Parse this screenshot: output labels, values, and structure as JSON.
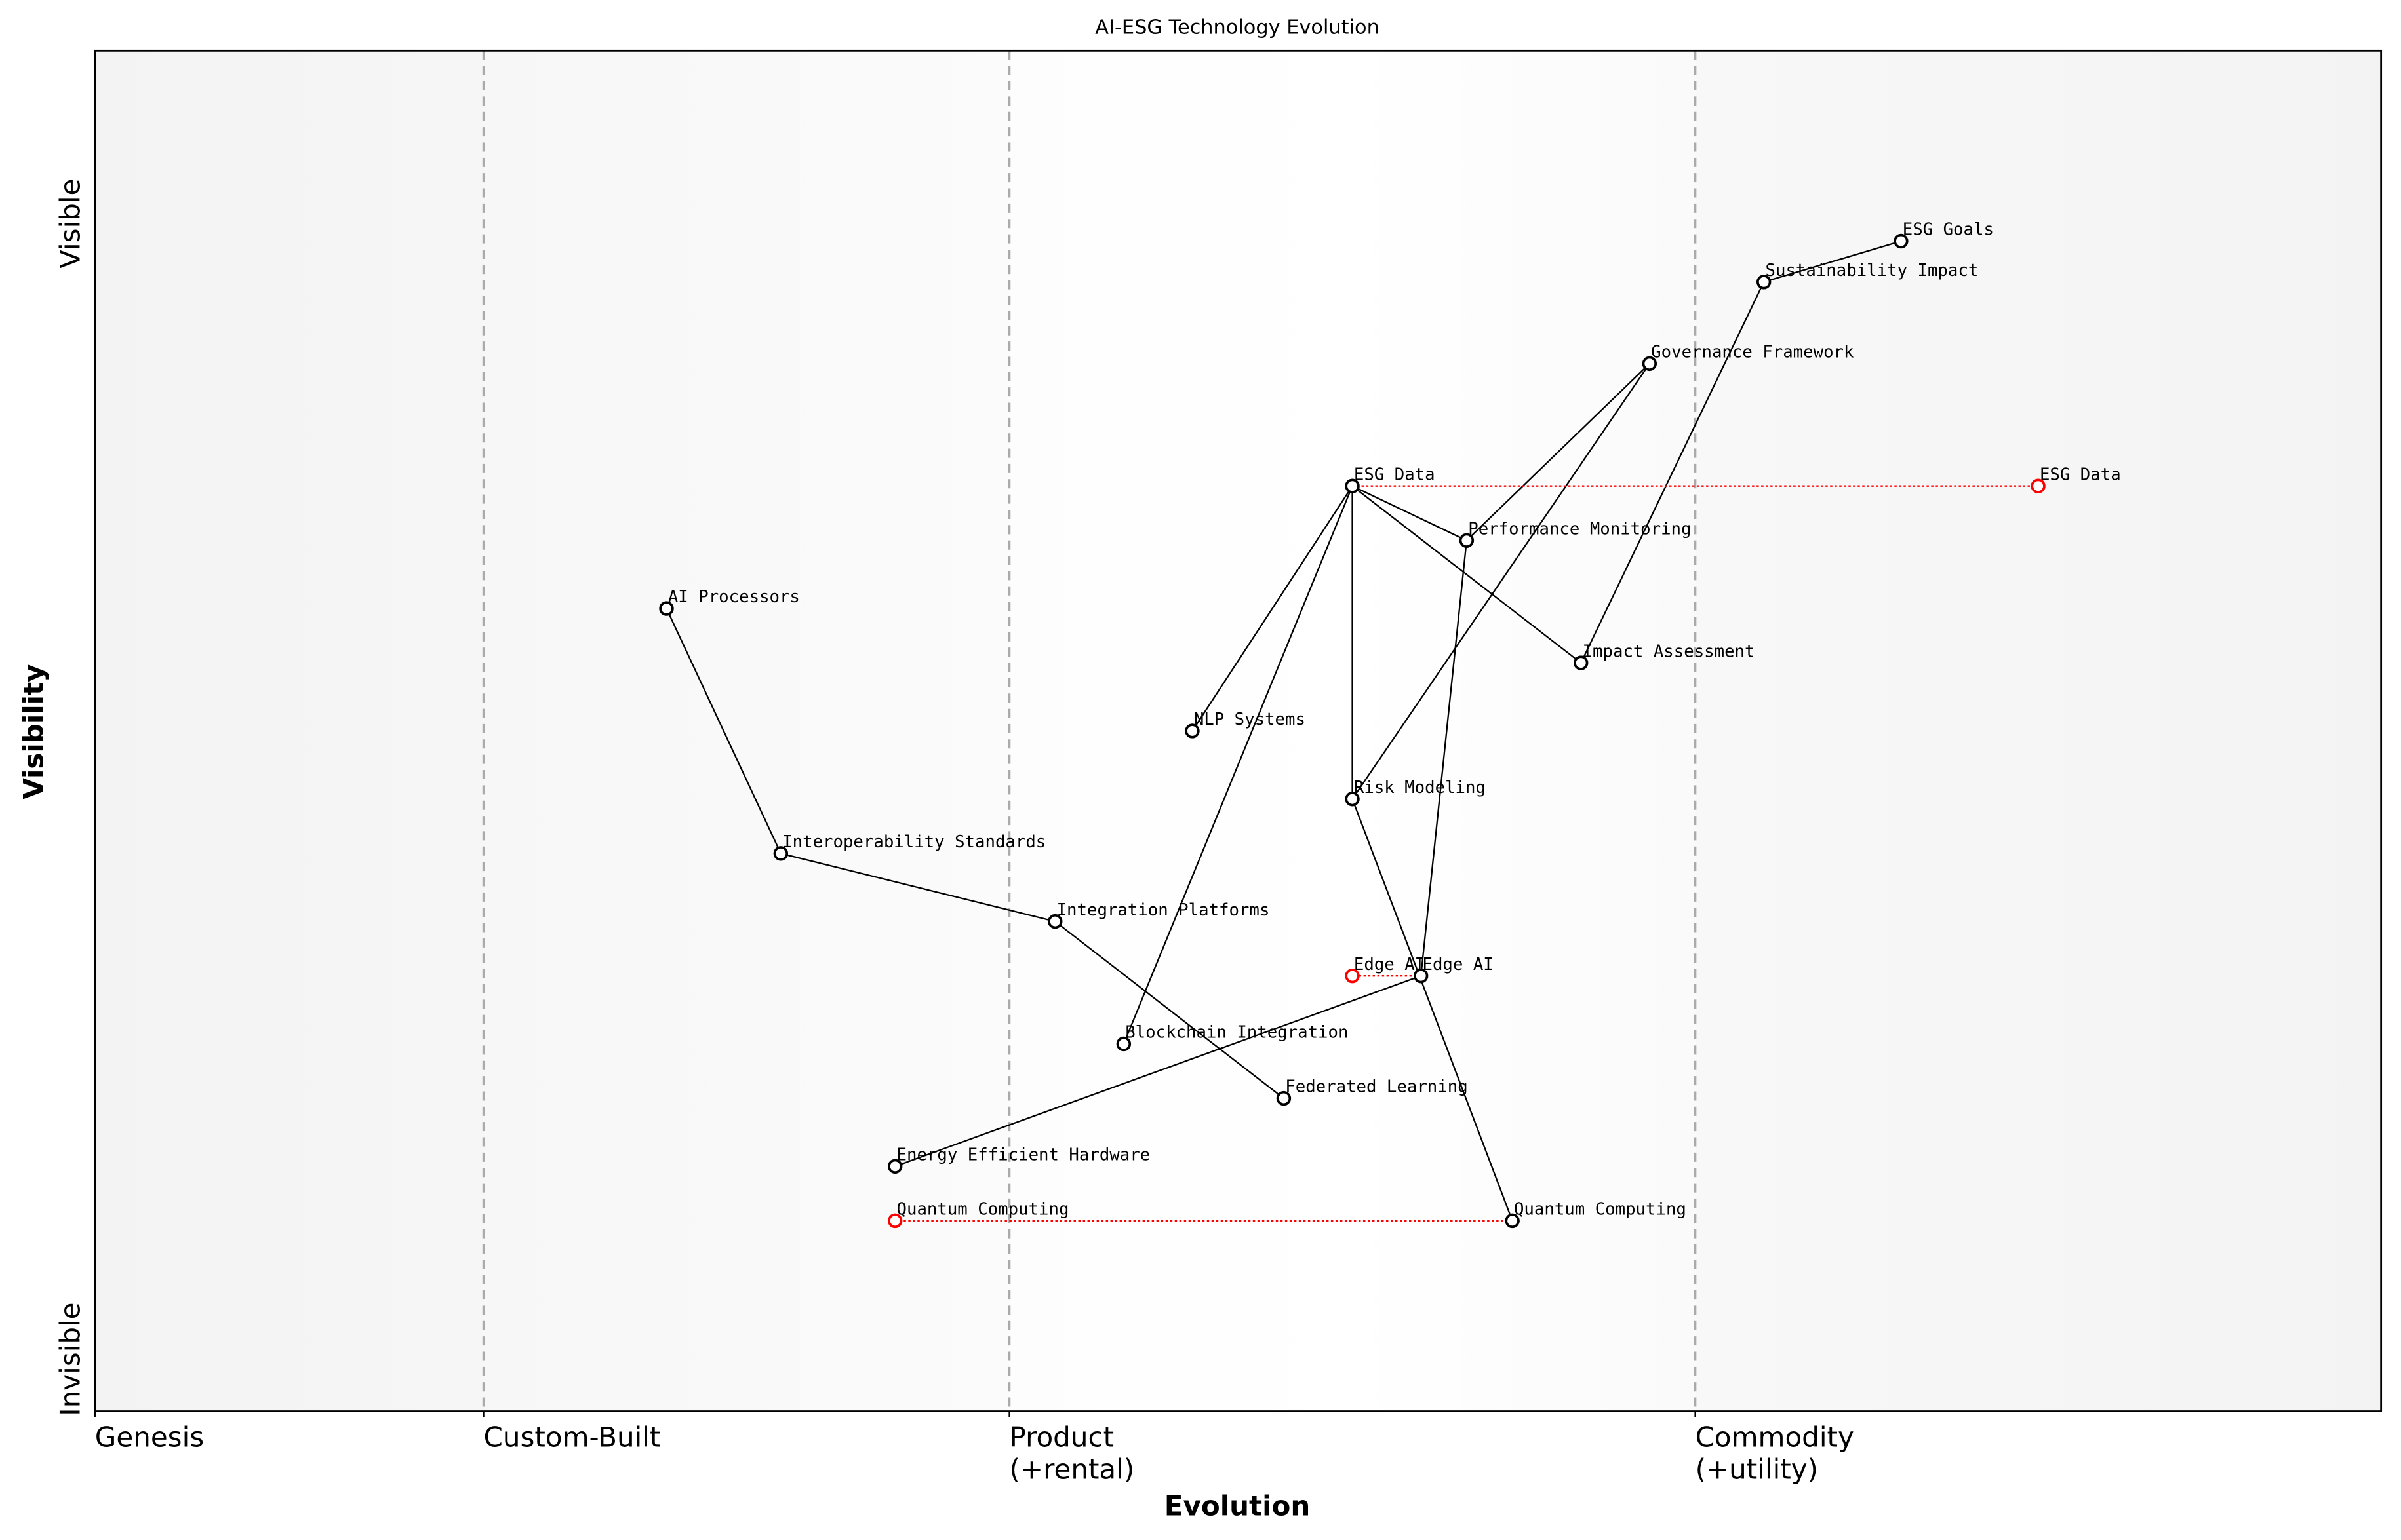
{
  "title": "AI-ESG Technology Evolution",
  "x_axis": {
    "label": "Evolution",
    "range": [
      0,
      1
    ],
    "stages": [
      {
        "label": "Genesis",
        "position": 0.0
      },
      {
        "label": "Custom-Built",
        "position": 0.17
      },
      {
        "label": "Product",
        "label2": "(+rental)",
        "position": 0.4
      },
      {
        "label": "Commodity",
        "label2": "(+utility)",
        "position": 0.7
      }
    ]
  },
  "y_axis": {
    "label": "Visibility",
    "range": [
      0,
      1
    ],
    "top_label": "Visible",
    "bottom_label": "Invisible"
  },
  "colors": {
    "component": "#000000",
    "evolved_component": "#ff0000",
    "stage_divider": "#aaaaaa",
    "band_genesis": "#f4f4f4",
    "band_custom": "#f9f9f9",
    "band_product": "#ffffff",
    "band_commodity": "#f4f4f4"
  },
  "components": [
    {
      "name": "ESG Goals",
      "evolution": 0.79,
      "visibility": 0.86
    },
    {
      "name": "Sustainability Impact",
      "evolution": 0.73,
      "visibility": 0.83
    },
    {
      "name": "Governance Framework",
      "evolution": 0.68,
      "visibility": 0.77
    },
    {
      "name": "ESG Data",
      "evolution": 0.55,
      "visibility": 0.68
    },
    {
      "name": "Performance Monitoring",
      "evolution": 0.6,
      "visibility": 0.64
    },
    {
      "name": "AI Processors",
      "evolution": 0.25,
      "visibility": 0.59
    },
    {
      "name": "Impact Assessment",
      "evolution": 0.65,
      "visibility": 0.55
    },
    {
      "name": "NLP Systems",
      "evolution": 0.48,
      "visibility": 0.5
    },
    {
      "name": "Risk Modeling",
      "evolution": 0.55,
      "visibility": 0.45
    },
    {
      "name": "Interoperability Standards",
      "evolution": 0.3,
      "visibility": 0.41
    },
    {
      "name": "Integration Platforms",
      "evolution": 0.42,
      "visibility": 0.36
    },
    {
      "name": "Edge AI",
      "evolution": 0.58,
      "visibility": 0.32
    },
    {
      "name": "Blockchain Integration",
      "evolution": 0.45,
      "visibility": 0.27
    },
    {
      "name": "Federated Learning",
      "evolution": 0.52,
      "visibility": 0.23
    },
    {
      "name": "Energy Efficient Hardware",
      "evolution": 0.35,
      "visibility": 0.18
    },
    {
      "name": "Quantum Computing",
      "evolution": 0.62,
      "visibility": 0.14
    }
  ],
  "links": [
    [
      "ESG Goals",
      "Sustainability Impact"
    ],
    [
      "Sustainability Impact",
      "Impact Assessment"
    ],
    [
      "Governance Framework",
      "Performance Monitoring"
    ],
    [
      "Governance Framework",
      "Risk Modeling"
    ],
    [
      "ESG Data",
      "Performance Monitoring"
    ],
    [
      "ESG Data",
      "Impact Assessment"
    ],
    [
      "ESG Data",
      "NLP Systems"
    ],
    [
      "ESG Data",
      "Risk Modeling"
    ],
    [
      "ESG Data",
      "Blockchain Integration"
    ],
    [
      "Performance Monitoring",
      "Edge AI"
    ],
    [
      "Risk Modeling",
      "Quantum Computing"
    ],
    [
      "AI Processors",
      "Interoperability Standards"
    ],
    [
      "Interoperability Standards",
      "Integration Platforms"
    ],
    [
      "Integration Platforms",
      "Federated Learning"
    ],
    [
      "Edge AI",
      "Energy Efficient Hardware"
    ]
  ],
  "evolutions": [
    {
      "name": "ESG Data",
      "from": 0.55,
      "to": 0.85,
      "visibility": 0.68
    },
    {
      "name": "Edge AI",
      "from": 0.58,
      "to": 0.55,
      "visibility": 0.32
    },
    {
      "name": "Quantum Computing",
      "from": 0.62,
      "to": 0.35,
      "visibility": 0.14
    }
  ]
}
